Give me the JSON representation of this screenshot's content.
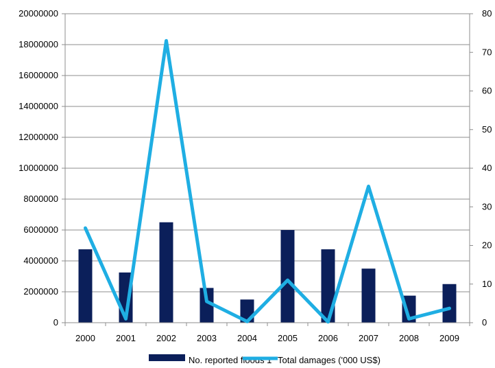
{
  "chart_data": {
    "type": "bar",
    "categories": [
      "2000",
      "2001",
      "2002",
      "2003",
      "2004",
      "2005",
      "2006",
      "2007",
      "2008",
      "2009"
    ],
    "series": [
      {
        "name": "No. reported floods 1",
        "type": "bar",
        "axis": "left",
        "color": "#0b1f5a",
        "values": [
          4750000,
          3250000,
          6500000,
          2250000,
          1500000,
          6000000,
          4750000,
          3500000,
          1750000,
          2500000
        ]
      },
      {
        "name": "Total damages ('000 US$)",
        "type": "line",
        "axis": "right",
        "color": "#1faee3",
        "values": [
          24.5,
          1,
          73,
          5.5,
          0.3,
          11,
          0.2,
          35.3,
          1,
          3.7
        ]
      }
    ],
    "left_axis": {
      "ylim": [
        0,
        20000000
      ],
      "ticks": [
        "0",
        "2000000",
        "4000000",
        "6000000",
        "8000000",
        "10000000",
        "12000000",
        "14000000",
        "16000000",
        "18000000",
        "20000000"
      ]
    },
    "right_axis": {
      "ylim": [
        0,
        80
      ],
      "ticks": [
        "0",
        "10",
        "20",
        "30",
        "40",
        "50",
        "60",
        "70",
        "80"
      ]
    },
    "grid": true,
    "legend_position": "bottom",
    "title": "",
    "xlabel": "",
    "ylabel": ""
  }
}
